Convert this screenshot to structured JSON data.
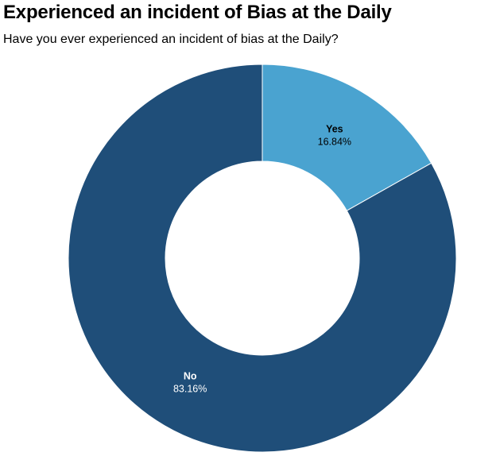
{
  "chart_data": {
    "type": "pie",
    "variant": "donut",
    "title": "Experienced an incident of Bias at the Daily",
    "subtitle": "Have you ever experienced an incident of bias at the Daily?",
    "slices": [
      {
        "label": "Yes",
        "value": 16.84,
        "value_label": "16.84%",
        "color": "#4aa3d0",
        "text_color": "#000000"
      },
      {
        "label": "No",
        "value": 83.16,
        "value_label": "83.16%",
        "color": "#1f4e79",
        "text_color": "#ffffff"
      }
    ],
    "start": "12 o'clock",
    "direction": "clockwise"
  }
}
